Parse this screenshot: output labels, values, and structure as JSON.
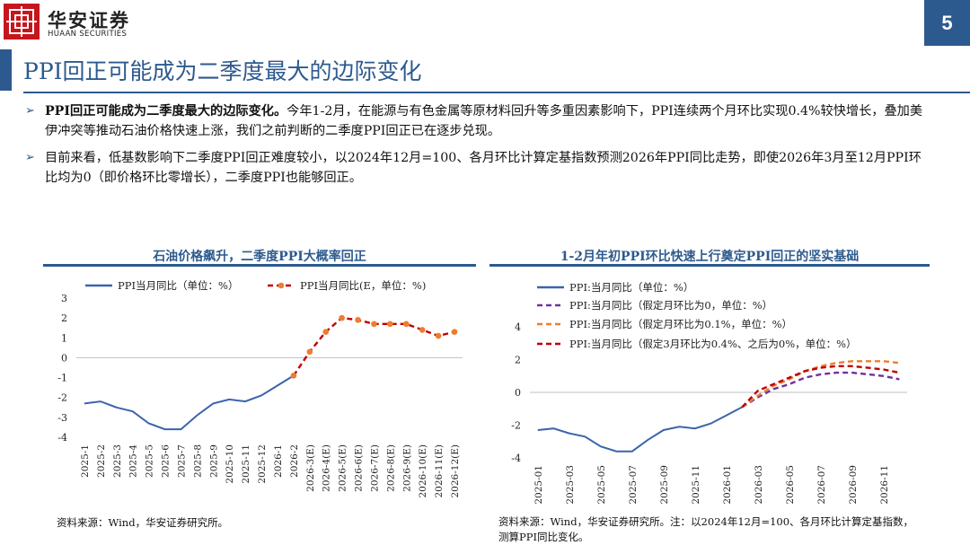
{
  "header": {
    "company_cn": "华安证券",
    "company_en": "HUAAN SECURITIES",
    "page_number": "5",
    "brand_color": "#c6161d",
    "accent_color": "#2d5a8e"
  },
  "title": "PPI回正可能成为二季度最大的边际变化",
  "bullets": [
    {
      "bold": "PPI回正可能成为二季度最大的边际变化。",
      "text": "今年1-2月，在能源与有色金属等原材料回升等多重因素影响下，PPI连续两个月环比实现0.4%较快增长，叠加美伊冲突等推动石油价格快速上涨，我们之前判断的二季度PPI回正已在逐步兑现。"
    },
    {
      "bold": "",
      "text": "目前来看，低基数影响下二季度PPI回正难度较小，以2024年12月=100、各月环比计算定基指数预测2026年PPI同比走势，即使2026年3月至12月PPI环比均为0（即价格环比零增长），二季度PPI也能够回正。"
    }
  ],
  "left_chart": {
    "title": "石油价格飙升，二季度PPI大概率回正",
    "source": "资料来源：Wind，华安证券研究所。"
  },
  "right_chart": {
    "title": "1-2月年初PPI环比快速上行奠定PPI回正的坚实基础",
    "source": "资料来源：Wind，华安证券研究所。注：以2024年12月=100、各月环比计算定基指数，测算PPI同比变化。"
  },
  "chart_data": [
    {
      "type": "line",
      "ylim": [
        -4,
        3
      ],
      "yticks": [
        "3",
        "2",
        "1",
        "0",
        "-1",
        "-2",
        "-3",
        "-4"
      ],
      "categories": [
        "2025-1",
        "2025-2",
        "2025-3",
        "2025-4",
        "2025-5",
        "2025-6",
        "2025-7",
        "2025-8",
        "2025-9",
        "2025-10",
        "2025-11",
        "2025-12",
        "2026-1",
        "2026-2",
        "2026-3(E)",
        "2026-4(E)",
        "2026-5(E)",
        "2026-6(E)",
        "2026-7(E)",
        "2026-8(E)",
        "2026-9(E)",
        "2026-10(E)",
        "2026-11(E)",
        "2026-12(E)"
      ],
      "series": [
        {
          "name": "PPI当月同比（单位：%）",
          "color": "#3b64ad",
          "style": "solid",
          "values": [
            -2.3,
            -2.2,
            -2.5,
            -2.7,
            -3.3,
            -3.6,
            -3.6,
            -2.9,
            -2.3,
            -2.1,
            -2.2,
            -1.9,
            -1.4,
            -0.9,
            null,
            null,
            null,
            null,
            null,
            null,
            null,
            null,
            null,
            null
          ]
        },
        {
          "name": "PPI当月同比(E，单位：%)",
          "color": "#c00000",
          "marker_color": "#ed7d31",
          "style": "dashed",
          "values": [
            null,
            null,
            null,
            null,
            null,
            null,
            null,
            null,
            null,
            null,
            null,
            null,
            null,
            -0.9,
            0.3,
            1.3,
            2.0,
            1.9,
            1.7,
            1.7,
            1.7,
            1.4,
            1.1,
            1.3
          ]
        }
      ]
    },
    {
      "type": "line",
      "ylim": [
        -4,
        4
      ],
      "yticks": [
        "4",
        "2",
        "0",
        "-2",
        "-4"
      ],
      "categories": [
        "2025-01",
        "2025-02",
        "2025-03",
        "2025-04",
        "2025-05",
        "2025-06",
        "2025-07",
        "2025-08",
        "2025-09",
        "2025-10",
        "2025-11",
        "2025-12",
        "2026-01",
        "2026-02",
        "2026-03",
        "2026-04",
        "2026-05",
        "2026-06",
        "2026-07",
        "2026-08",
        "2026-09",
        "2026-10",
        "2026-11",
        "2026-12"
      ],
      "tick_labels": [
        "2025-01",
        "2025-03",
        "2025-05",
        "2025-07",
        "2025-09",
        "2025-11",
        "2026-01",
        "2026-03",
        "2026-05",
        "2026-07",
        "2026-09",
        "2026-11"
      ],
      "series": [
        {
          "name": "PPI:当月同比（单位：%）",
          "color": "#3b64ad",
          "style": "solid",
          "values": [
            -2.3,
            -2.2,
            -2.5,
            -2.7,
            -3.3,
            -3.6,
            -3.6,
            -2.9,
            -2.3,
            -2.1,
            -2.2,
            -1.9,
            -1.4,
            -0.9,
            null,
            null,
            null,
            null,
            null,
            null,
            null,
            null,
            null,
            null
          ]
        },
        {
          "name": "PPI:当月同比（假定月环比为0，单位：%）",
          "color": "#7030a0",
          "style": "dashed",
          "values": [
            null,
            null,
            null,
            null,
            null,
            null,
            null,
            null,
            null,
            null,
            null,
            null,
            null,
            -0.9,
            -0.3,
            0.2,
            0.5,
            0.9,
            1.1,
            1.2,
            1.2,
            1.1,
            1.0,
            0.8
          ]
        },
        {
          "name": "PPI:当月同比（假定月环比为0.1%，单位：%）",
          "color": "#ed7d31",
          "style": "dashed",
          "values": [
            null,
            null,
            null,
            null,
            null,
            null,
            null,
            null,
            null,
            null,
            null,
            null,
            null,
            -0.9,
            -0.2,
            0.4,
            0.8,
            1.3,
            1.6,
            1.8,
            1.9,
            1.9,
            1.9,
            1.8
          ]
        },
        {
          "name": "PPI:当月同比（假定3月环比为0.4%、之后为0%，单位：%）",
          "color": "#c00000",
          "style": "dashed",
          "values": [
            null,
            null,
            null,
            null,
            null,
            null,
            null,
            null,
            null,
            null,
            null,
            null,
            null,
            -0.9,
            0.1,
            0.5,
            0.9,
            1.3,
            1.5,
            1.6,
            1.6,
            1.5,
            1.4,
            1.2
          ]
        }
      ]
    }
  ]
}
